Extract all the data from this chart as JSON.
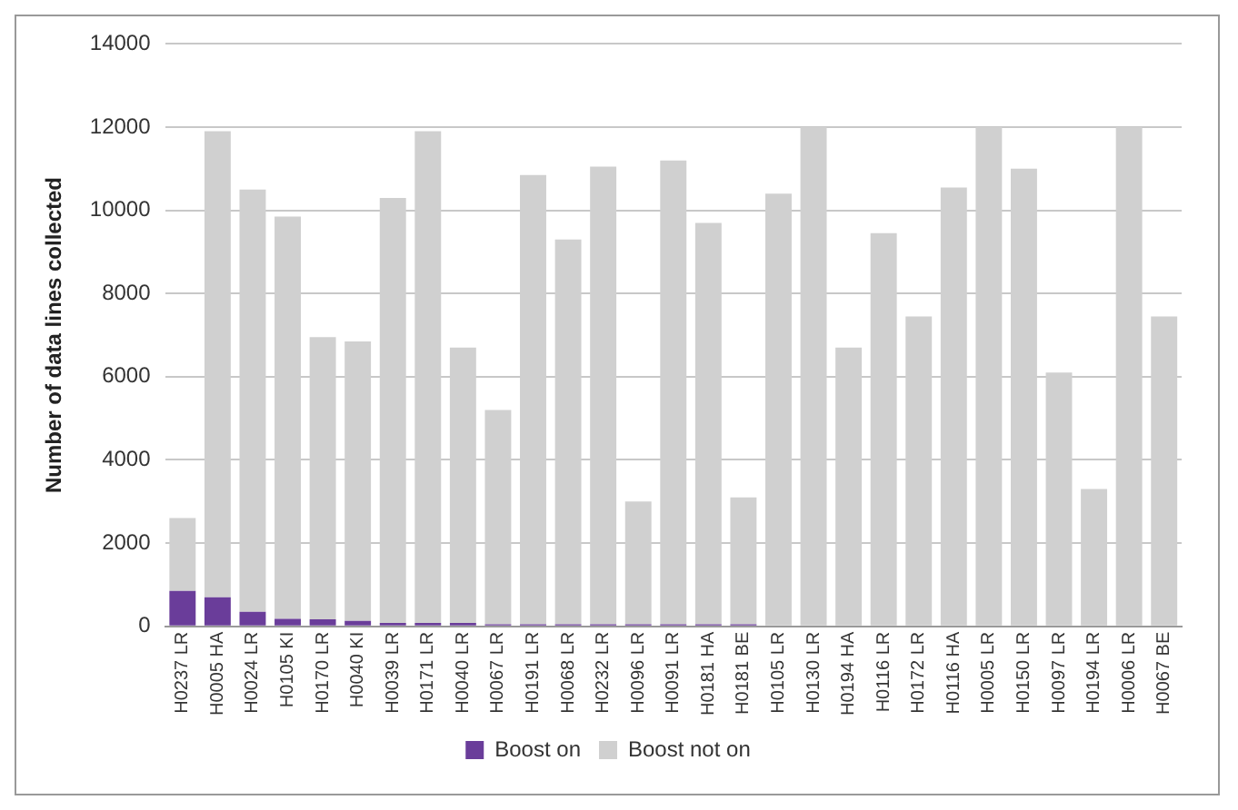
{
  "chart_data": {
    "type": "bar",
    "stacked": true,
    "ylabel": "Number of data lines collected",
    "categories": [
      "H0237 LR",
      "H0005 HA",
      "H0024 LR",
      "H0105 KI",
      "H0170 LR",
      "H0040 KI",
      "H0039 LR",
      "H0171 LR",
      "H0040 LR",
      "H0067 LR",
      "H0191 LR",
      "H0068 LR",
      "H0232 LR",
      "H0096 LR",
      "H0091 LR",
      "H0181 HA",
      "H0181 BE",
      "H0105 LR",
      "H0130 LR",
      "H0194 HA",
      "H0116 LR",
      "H0172 LR",
      "H0116 HA",
      "H0005 LR",
      "H0150 LR",
      "H0097 LR",
      "H0194 LR",
      "H0006 LR",
      "H0067 BE"
    ],
    "series": [
      {
        "name": "Boost on",
        "color": "#6a3d9a",
        "values": [
          850,
          700,
          350,
          180,
          170,
          130,
          80,
          80,
          80,
          50,
          50,
          50,
          50,
          50,
          50,
          50,
          50,
          0,
          0,
          0,
          0,
          0,
          0,
          0,
          0,
          0,
          0,
          0,
          0
        ]
      },
      {
        "name": "Boost not on",
        "color": "#d0d0d0",
        "values": [
          1750,
          11200,
          10150,
          9670,
          6780,
          6720,
          10220,
          11820,
          6620,
          5150,
          10800,
          9250,
          11000,
          2950,
          11150,
          9650,
          3050,
          10400,
          12000,
          6700,
          9450,
          7450,
          10550,
          12000,
          11000,
          6100,
          3300,
          12000,
          7450
        ]
      }
    ],
    "ylim": [
      0,
      14000
    ],
    "yticks": [
      0,
      2000,
      4000,
      6000,
      8000,
      10000,
      12000,
      14000
    ],
    "grid": "y",
    "legend": "bottom"
  }
}
